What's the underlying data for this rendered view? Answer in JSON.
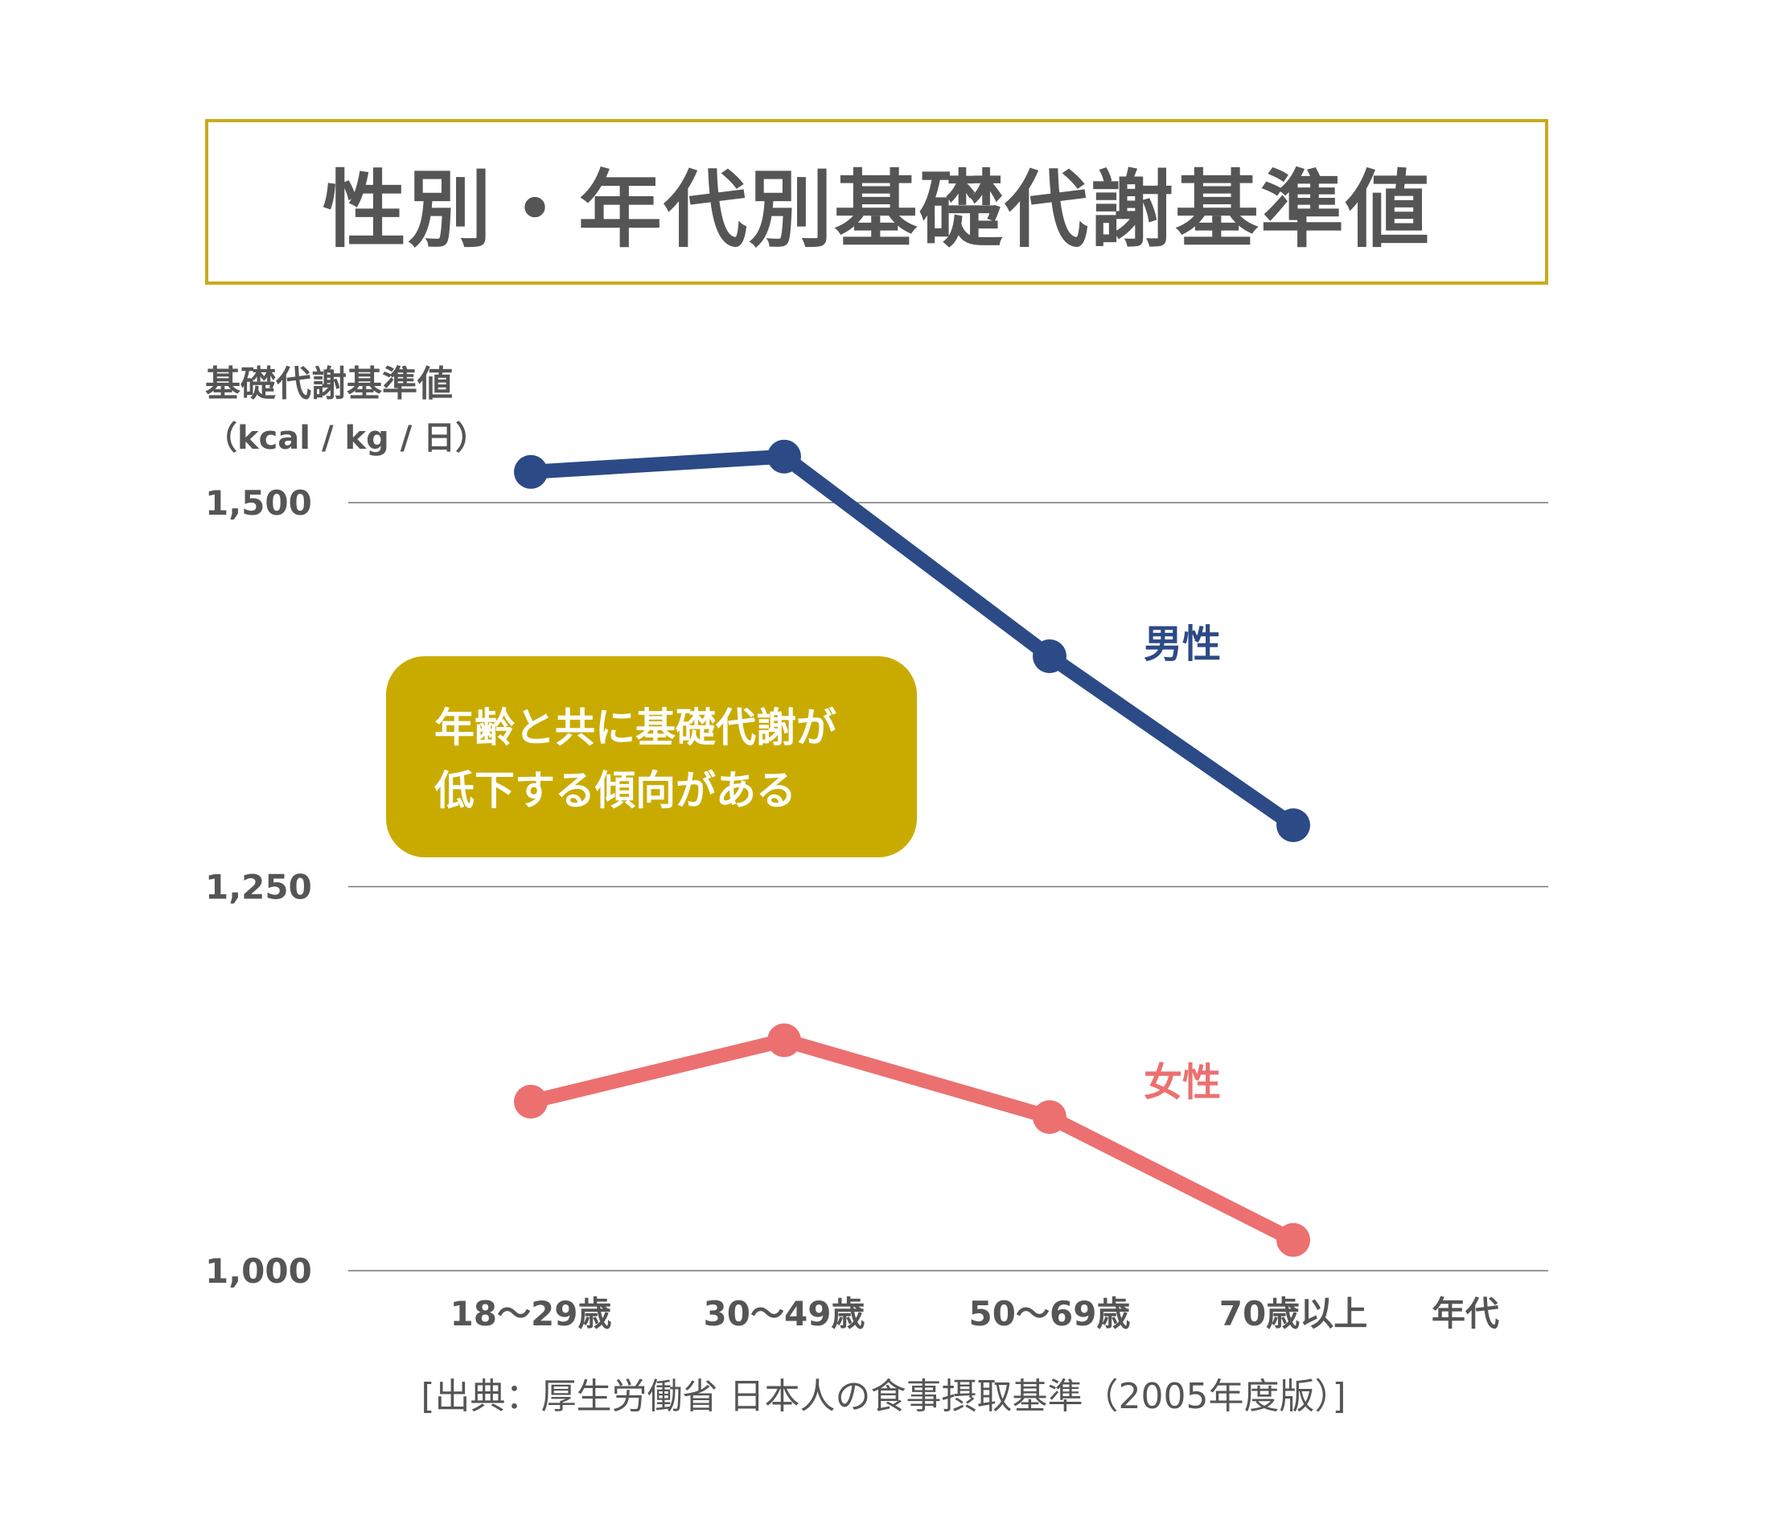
{
  "title": "性別・年代別基礎代謝基準値",
  "source": "[出典：厚生労働省 日本人の食事摂取基準（2005年度版）]",
  "callout": {
    "line1": "年齢と共に基礎代謝が",
    "line2": "低下する傾向がある"
  },
  "chart_data": {
    "type": "line",
    "title": "性別・年代別基礎代謝基準値",
    "ylabel": "基礎代謝基準値",
    "yunit": "（kcal / kg / 日）",
    "xlabel": "年代",
    "categories": [
      "18〜29歳",
      "30〜49歳",
      "50〜69歳",
      "70歳以上"
    ],
    "yticks": [
      1000,
      1250,
      1500
    ],
    "ytick_labels": [
      "1,000",
      "1,250",
      "1,500"
    ],
    "ylim": [
      1000,
      1500
    ],
    "grid": true,
    "series": [
      {
        "name": "男性",
        "color": "#2c4a86",
        "values": [
          1520,
          1530,
          1400,
          1290
        ]
      },
      {
        "name": "女性",
        "color": "#ec7070",
        "values": [
          1110,
          1150,
          1100,
          1020
        ]
      }
    ]
  }
}
